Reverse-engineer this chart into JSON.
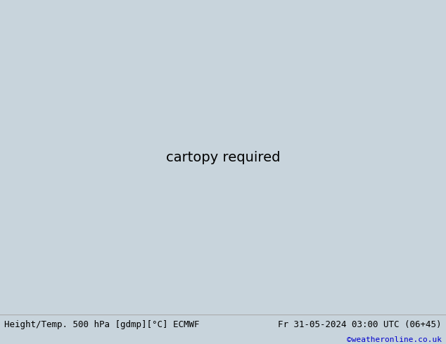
{
  "title_left": "Height/Temp. 500 hPa [gdmp][°C] ECMWF",
  "title_right": "Fr 31-05-2024 03:00 UTC (06+45)",
  "credit": "©weatheronline.co.uk",
  "bg_ocean": "#c8d4dc",
  "bg_land_green": "#b8d898",
  "bg_land_gray": "#c0c0b8",
  "fig_width": 6.34,
  "fig_height": 4.9,
  "dpi": 100,
  "bottom_bar_color": "#dcdcdc",
  "title_fontsize": 9.0,
  "credit_color": "#0000cc",
  "map_extent": [
    88,
    160,
    -12,
    52
  ],
  "contour_lw": 1.4,
  "label_fs": 7.5
}
